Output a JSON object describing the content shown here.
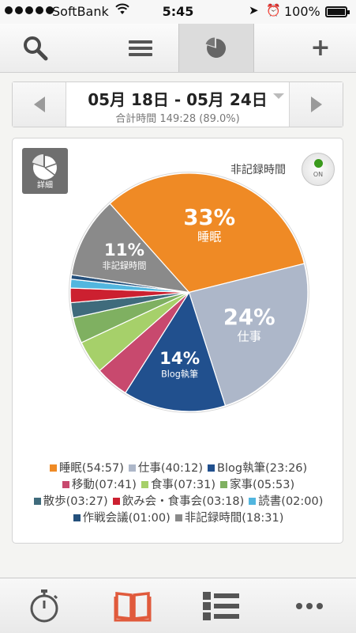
{
  "status": {
    "carrier": "SoftBank",
    "time": "5:45",
    "battery": "100%"
  },
  "toolbar": {
    "add_label": "+"
  },
  "datebar": {
    "range": "05月 18日 - 05月 24日",
    "total": "合計時間 149:28 (89.0%)"
  },
  "card": {
    "detail_label": "詳細",
    "unrecorded_label": "非記録時間",
    "toggle_label": "ON",
    "toggle_color": "#3a9a1c"
  },
  "chart_data": {
    "type": "pie",
    "unit": "hh:mm",
    "slices": [
      {
        "name": "睡眠",
        "value": "54:57",
        "minutes": 3297,
        "color": "#ef8a25",
        "pct_label": "33%",
        "name_label": "睡眠"
      },
      {
        "name": "仕事",
        "value": "40:12",
        "minutes": 2412,
        "color": "#adb7c9",
        "pct_label": "24%",
        "name_label": "仕事"
      },
      {
        "name": "Blog執筆",
        "value": "23:26",
        "minutes": 1406,
        "color": "#21508e",
        "pct_label": "14%",
        "name_label": "Blog執筆"
      },
      {
        "name": "移動",
        "value": "07:41",
        "minutes": 461,
        "color": "#c8496e",
        "pct_label": "",
        "name_label": ""
      },
      {
        "name": "食事",
        "value": "07:31",
        "minutes": 451,
        "color": "#a6d06a",
        "pct_label": "",
        "name_label": ""
      },
      {
        "name": "家事",
        "value": "05:53",
        "minutes": 353,
        "color": "#7fb061",
        "pct_label": "",
        "name_label": ""
      },
      {
        "name": "散歩",
        "value": "03:27",
        "minutes": 207,
        "color": "#3f6b7c",
        "pct_label": "",
        "name_label": ""
      },
      {
        "name": "飲み会・食事会",
        "value": "03:18",
        "minutes": 198,
        "color": "#cc2030",
        "pct_label": "",
        "name_label": ""
      },
      {
        "name": "読書",
        "value": "02:00",
        "minutes": 120,
        "color": "#52b6df",
        "pct_label": "",
        "name_label": ""
      },
      {
        "name": "作戦会議",
        "value": "01:00",
        "minutes": 60,
        "color": "#24507c",
        "pct_label": "",
        "name_label": ""
      },
      {
        "name": "非記録時間",
        "value": "18:31",
        "minutes": 1111,
        "color": "#8a8a8a",
        "pct_label": "11%",
        "name_label": "非記録時間"
      }
    ]
  },
  "legend": {
    "rows": [
      [
        {
          "label": "睡眠(54:57)",
          "color": "#ef8a25"
        },
        {
          "label": "仕事(40:12)",
          "color": "#adb7c9"
        },
        {
          "label": "Blog執筆(23:26)",
          "color": "#21508e"
        }
      ],
      [
        {
          "label": "移動(07:41)",
          "color": "#c8496e"
        },
        {
          "label": "食事(07:31)",
          "color": "#a6d06a"
        },
        {
          "label": "家事(05:53)",
          "color": "#7fb061"
        }
      ],
      [
        {
          "label": "散歩(03:27)",
          "color": "#3f6b7c"
        },
        {
          "label": "飲み会・食事会(03:18)",
          "color": "#cc2030"
        },
        {
          "label": "読書(02:00)",
          "color": "#52b6df"
        }
      ],
      [
        {
          "label": "作戦会議(01:00)",
          "color": "#24507c"
        },
        {
          "label": "非記録時間(18:31)",
          "color": "#8a8a8a"
        }
      ]
    ]
  },
  "tabs": [
    {
      "name": "timer",
      "active": false
    },
    {
      "name": "book",
      "active": true,
      "color": "#e05a3c"
    },
    {
      "name": "list",
      "active": false
    },
    {
      "name": "more",
      "active": false
    }
  ]
}
